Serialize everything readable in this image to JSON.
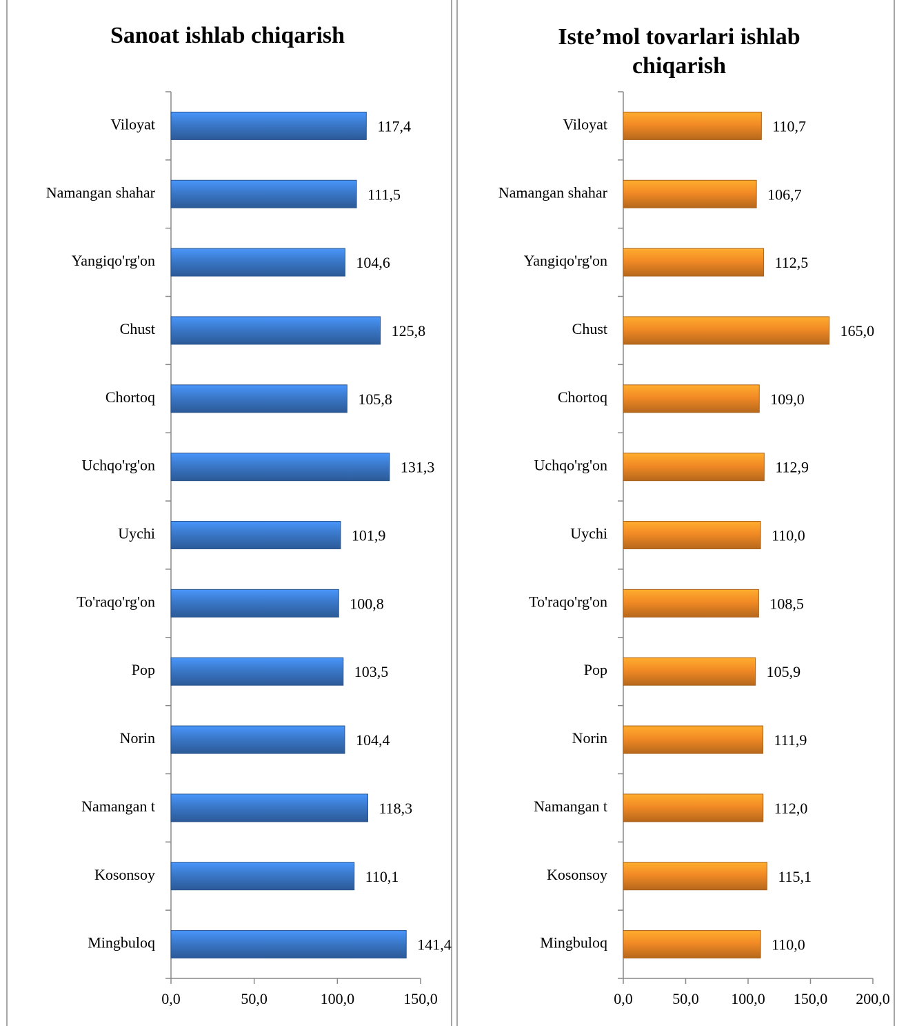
{
  "chart_data": [
    {
      "type": "bar",
      "orientation": "horizontal",
      "title": "Sanoat ishlab chiqarish",
      "categories": [
        "Viloyat",
        "Namangan shahar",
        "Yangiqo'rg'on",
        "Chust",
        "Chortoq",
        "Uchqo'rg'on",
        "Uychi",
        "To'raqo'rg'on",
        "Pop",
        "Norin",
        "Namangan t",
        "Kosonsoy",
        "Mingbuloq"
      ],
      "values": [
        117.4,
        111.5,
        104.6,
        125.8,
        105.8,
        131.3,
        101.9,
        100.8,
        103.5,
        104.4,
        118.3,
        110.1,
        141.4
      ],
      "value_labels": [
        "117,4",
        "111,5",
        "104,6",
        "125,8",
        "105,8",
        "131,3",
        "101,9",
        "100,8",
        "103,5",
        "104,4",
        "118,3",
        "110,1",
        "141,4"
      ],
      "color": "#3a78c9",
      "xlim": [
        0,
        150
      ],
      "xticks": [
        {
          "value": 0,
          "label": "0,0"
        },
        {
          "value": 50,
          "label": "50,0"
        },
        {
          "value": 100,
          "label": "100,0"
        },
        {
          "value": 150,
          "label": "150,0"
        }
      ]
    },
    {
      "type": "bar",
      "orientation": "horizontal",
      "title": "Iste’mol tovarlari  ishlab chiqarish",
      "categories": [
        "Viloyat",
        "Namangan shahar",
        "Yangiqo'rg'on",
        "Chust",
        "Chortoq",
        "Uchqo'rg'on",
        "Uychi",
        "To'raqo'rg'on",
        "Pop",
        "Norin",
        "Namangan t",
        "Kosonsoy",
        "Mingbuloq"
      ],
      "values": [
        110.7,
        106.7,
        112.5,
        165.0,
        109.0,
        112.9,
        110.0,
        108.5,
        105.9,
        111.9,
        112.0,
        115.1,
        110.0
      ],
      "value_labels": [
        "110,7",
        "106,7",
        "112,5",
        "165,0",
        "109,0",
        "112,9",
        "110,0",
        "108,5",
        "105,9",
        "111,9",
        "112,0",
        "115,1",
        "110,0"
      ],
      "color": "#f28a25",
      "xlim": [
        0,
        200
      ],
      "xticks": [
        {
          "value": 0,
          "label": "0,0"
        },
        {
          "value": 50,
          "label": "50,0"
        },
        {
          "value": 100,
          "label": "100,0"
        },
        {
          "value": 150,
          "label": "150,0"
        },
        {
          "value": 200,
          "label": "200,0"
        }
      ]
    }
  ]
}
